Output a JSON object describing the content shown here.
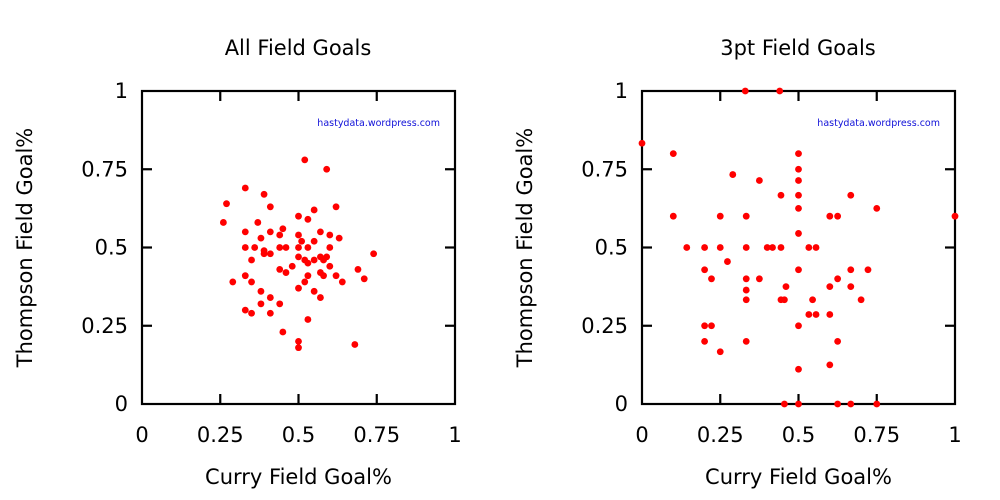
{
  "chart_data": [
    {
      "type": "scatter",
      "title": "All Field Goals",
      "xlabel": "Curry Field Goal%",
      "ylabel": "Thompson Field Goal%",
      "xlim": [
        0,
        1
      ],
      "ylim": [
        0,
        1
      ],
      "xticks": [
        "0",
        "0.25",
        "0.5",
        "0.75",
        "1"
      ],
      "yticks": [
        "0",
        "0.25",
        "0.5",
        "0.75",
        "1"
      ],
      "watermark": "hastydata.wordpress.com",
      "color": "#ff0000",
      "grid": false,
      "points": [
        [
          0.52,
          0.78
        ],
        [
          0.59,
          0.75
        ],
        [
          0.33,
          0.69
        ],
        [
          0.39,
          0.67
        ],
        [
          0.27,
          0.64
        ],
        [
          0.41,
          0.63
        ],
        [
          0.62,
          0.63
        ],
        [
          0.55,
          0.62
        ],
        [
          0.5,
          0.6
        ],
        [
          0.53,
          0.59
        ],
        [
          0.37,
          0.58
        ],
        [
          0.26,
          0.58
        ],
        [
          0.45,
          0.56
        ],
        [
          0.57,
          0.55
        ],
        [
          0.33,
          0.55
        ],
        [
          0.41,
          0.55
        ],
        [
          0.44,
          0.54
        ],
        [
          0.5,
          0.54
        ],
        [
          0.6,
          0.54
        ],
        [
          0.38,
          0.53
        ],
        [
          0.63,
          0.53
        ],
        [
          0.51,
          0.52
        ],
        [
          0.55,
          0.52
        ],
        [
          0.33,
          0.5
        ],
        [
          0.36,
          0.5
        ],
        [
          0.44,
          0.5
        ],
        [
          0.46,
          0.5
        ],
        [
          0.5,
          0.5
        ],
        [
          0.53,
          0.5
        ],
        [
          0.6,
          0.5
        ],
        [
          0.39,
          0.49
        ],
        [
          0.39,
          0.48
        ],
        [
          0.41,
          0.48
        ],
        [
          0.5,
          0.47
        ],
        [
          0.57,
          0.47
        ],
        [
          0.59,
          0.47
        ],
        [
          0.74,
          0.48
        ],
        [
          0.52,
          0.46
        ],
        [
          0.55,
          0.46
        ],
        [
          0.58,
          0.46
        ],
        [
          0.35,
          0.46
        ],
        [
          0.53,
          0.45
        ],
        [
          0.48,
          0.44
        ],
        [
          0.6,
          0.44
        ],
        [
          0.44,
          0.43
        ],
        [
          0.57,
          0.42
        ],
        [
          0.46,
          0.42
        ],
        [
          0.69,
          0.43
        ],
        [
          0.33,
          0.41
        ],
        [
          0.53,
          0.41
        ],
        [
          0.58,
          0.41
        ],
        [
          0.62,
          0.41
        ],
        [
          0.71,
          0.4
        ],
        [
          0.35,
          0.39
        ],
        [
          0.29,
          0.39
        ],
        [
          0.52,
          0.39
        ],
        [
          0.64,
          0.39
        ],
        [
          0.5,
          0.37
        ],
        [
          0.38,
          0.36
        ],
        [
          0.55,
          0.36
        ],
        [
          0.57,
          0.34
        ],
        [
          0.41,
          0.34
        ],
        [
          0.44,
          0.32
        ],
        [
          0.38,
          0.32
        ],
        [
          0.33,
          0.3
        ],
        [
          0.35,
          0.29
        ],
        [
          0.41,
          0.29
        ],
        [
          0.53,
          0.27
        ],
        [
          0.45,
          0.23
        ],
        [
          0.5,
          0.2
        ],
        [
          0.68,
          0.19
        ],
        [
          0.5,
          0.18
        ]
      ]
    },
    {
      "type": "scatter",
      "title": "3pt Field Goals",
      "xlabel": "Curry Field Goal%",
      "ylabel": "Thompson Field Goal%",
      "xlim": [
        0,
        1
      ],
      "ylim": [
        0,
        1
      ],
      "xticks": [
        "0",
        "0.25",
        "0.5",
        "0.75",
        "1"
      ],
      "yticks": [
        "0",
        "0.25",
        "0.5",
        "0.75",
        "1"
      ],
      "watermark": "hastydata.wordpress.com",
      "color": "#ff0000",
      "grid": false,
      "points": [
        [
          0.33,
          1.0
        ],
        [
          0.44,
          1.0
        ],
        [
          0.0,
          0.833
        ],
        [
          0.1,
          0.8
        ],
        [
          0.5,
          0.8
        ],
        [
          0.5,
          0.75
        ],
        [
          0.29,
          0.733
        ],
        [
          0.5,
          0.714
        ],
        [
          0.375,
          0.714
        ],
        [
          0.444,
          0.667
        ],
        [
          0.5,
          0.667
        ],
        [
          0.667,
          0.667
        ],
        [
          0.5,
          0.625
        ],
        [
          0.75,
          0.625
        ],
        [
          0.1,
          0.6
        ],
        [
          0.25,
          0.6
        ],
        [
          0.333,
          0.6
        ],
        [
          0.6,
          0.6
        ],
        [
          0.625,
          0.6
        ],
        [
          1.0,
          0.6
        ],
        [
          0.5,
          0.545
        ],
        [
          0.143,
          0.5
        ],
        [
          0.2,
          0.5
        ],
        [
          0.25,
          0.5
        ],
        [
          0.333,
          0.5
        ],
        [
          0.4,
          0.5
        ],
        [
          0.417,
          0.5
        ],
        [
          0.444,
          0.5
        ],
        [
          0.533,
          0.5
        ],
        [
          0.556,
          0.5
        ],
        [
          0.273,
          0.455
        ],
        [
          0.2,
          0.429
        ],
        [
          0.5,
          0.429
        ],
        [
          0.667,
          0.429
        ],
        [
          0.722,
          0.429
        ],
        [
          0.222,
          0.4
        ],
        [
          0.333,
          0.4
        ],
        [
          0.375,
          0.4
        ],
        [
          0.625,
          0.4
        ],
        [
          0.6,
          0.375
        ],
        [
          0.46,
          0.375
        ],
        [
          0.667,
          0.375
        ],
        [
          0.333,
          0.364
        ],
        [
          0.333,
          0.333
        ],
        [
          0.444,
          0.333
        ],
        [
          0.455,
          0.333
        ],
        [
          0.545,
          0.333
        ],
        [
          0.7,
          0.333
        ],
        [
          0.533,
          0.286
        ],
        [
          0.556,
          0.286
        ],
        [
          0.6,
          0.286
        ],
        [
          0.2,
          0.25
        ],
        [
          0.222,
          0.25
        ],
        [
          0.5,
          0.25
        ],
        [
          0.2,
          0.2
        ],
        [
          0.333,
          0.2
        ],
        [
          0.625,
          0.2
        ],
        [
          0.25,
          0.167
        ],
        [
          0.6,
          0.125
        ],
        [
          0.5,
          0.111
        ],
        [
          0.455,
          0.0
        ],
        [
          0.5,
          0.0
        ],
        [
          0.625,
          0.0
        ],
        [
          0.667,
          0.0
        ],
        [
          0.75,
          0.0
        ]
      ]
    }
  ]
}
